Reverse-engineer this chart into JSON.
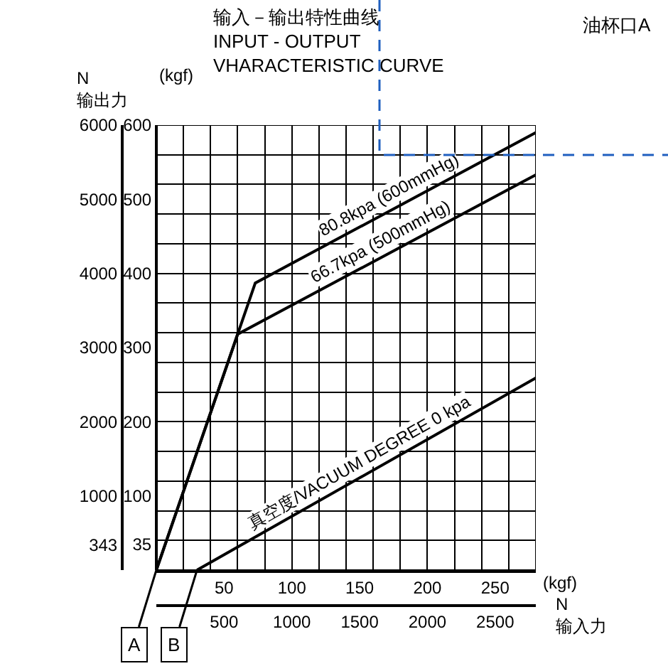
{
  "chart_data": {
    "type": "line",
    "title": "输入－输出特性曲线",
    "subtitle": "INPUT - OUTPUT VHARACTERISTIC CURVE",
    "xlabel": "(kgf)",
    "x2label": "N 输入力",
    "ylabel": "(kgf)",
    "y2label": "N 输出力",
    "series": [
      {
        "name": "80.8kpa (600mmHg)",
        "color": "#000000",
        "x": [
          0,
          73,
          280
        ],
        "values": [
          0,
          387,
          590
        ]
      },
      {
        "name": "66.7kpa (500mmHg)",
        "color": "#000000",
        "x": [
          0,
          60,
          280
        ],
        "values": [
          0,
          318,
          533
        ]
      },
      {
        "name": "真空度/VACUUM DEGREE 0 kpa",
        "color": "#000000",
        "x": [
          30,
          280
        ],
        "values": [
          0,
          259
        ]
      }
    ],
    "xlim": [
      0,
      280
    ],
    "xticks": [
      50,
      100,
      150,
      200,
      250,
      {
        "value": 0,
        "label": null
      },
      {
        "value": 20,
        "label": null
      },
      {
        "value": 40,
        "label": null
      },
      {
        "value": 60,
        "label": null
      },
      {
        "value": 80,
        "label": null
      },
      {
        "value": 100,
        "label": null
      },
      {
        "value": 120,
        "label": null
      },
      {
        "value": 140,
        "label": null
      },
      {
        "value": 160,
        "label": null
      },
      {
        "value": 180,
        "label": null
      },
      {
        "value": 200,
        "label": null
      },
      {
        "value": 220,
        "label": null
      },
      {
        "value": 240,
        "label": null
      },
      {
        "value": 260,
        "label": null
      },
      {
        "value": 280,
        "label": null
      }
    ],
    "x2lim": [
      0,
      2800
    ],
    "x2ticks": [
      500,
      1000,
      1500,
      2000,
      2500
    ],
    "ylim": [
      0,
      600
    ],
    "yticks": [
      35,
      100,
      200,
      300,
      400,
      500,
      600,
      {
        "value": 0,
        "label": null
      },
      {
        "value": 40,
        "label": null
      },
      {
        "value": 80,
        "label": null
      },
      {
        "value": 120,
        "label": null
      },
      {
        "value": 160,
        "label": null
      },
      {
        "value": 200,
        "label": null
      },
      {
        "value": 240,
        "label": null
      },
      {
        "value": 280,
        "label": null
      },
      {
        "value": 320,
        "label": null
      },
      {
        "value": 360,
        "label": null
      },
      {
        "value": 400,
        "label": null
      },
      {
        "value": 440,
        "label": null
      },
      {
        "value": 480,
        "label": null
      },
      {
        "value": 520,
        "label": null
      },
      {
        "value": 560,
        "label": null
      },
      {
        "value": 600,
        "label": null
      }
    ],
    "y2lim": [
      0,
      6000
    ],
    "y2ticks": [
      343,
      1000,
      2000,
      3000,
      4000,
      5000,
      6000
    ],
    "annotations": [
      "油杯口A",
      {
        "text": "A",
        "x": 0,
        "y": 0
      },
      {
        "text": "B",
        "x": 30,
        "y": 0
      }
    ],
    "grid": true,
    "legend": false,
    "marker": "none",
    "line_style": "solid"
  }
}
